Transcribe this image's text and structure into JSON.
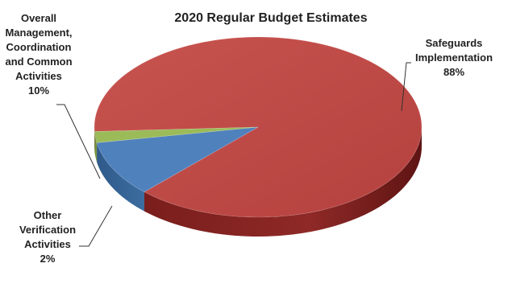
{
  "chart_data": {
    "type": "pie",
    "title": "2020 Regular Budget Estimates",
    "slices": [
      {
        "name": "Safeguards Implementation",
        "value": 88,
        "label": "88%",
        "label_lines": [
          "Safeguards",
          "Implementation",
          "88%"
        ],
        "color": "#c0504d"
      },
      {
        "name": "Overall Management, Coordination and Common Activities",
        "value": 10,
        "label": "10%",
        "label_lines": [
          "Overall",
          "Management,",
          "Coordination",
          "and Common",
          "Activities",
          "10%"
        ],
        "color": "#4f81bd"
      },
      {
        "name": "Other Verification Activities",
        "value": 2,
        "label": "2%",
        "label_lines": [
          "Other",
          "Verification",
          "Activities",
          "2%"
        ],
        "color": "#9bbb59"
      }
    ],
    "legend": "none",
    "style": "3d-pie"
  }
}
